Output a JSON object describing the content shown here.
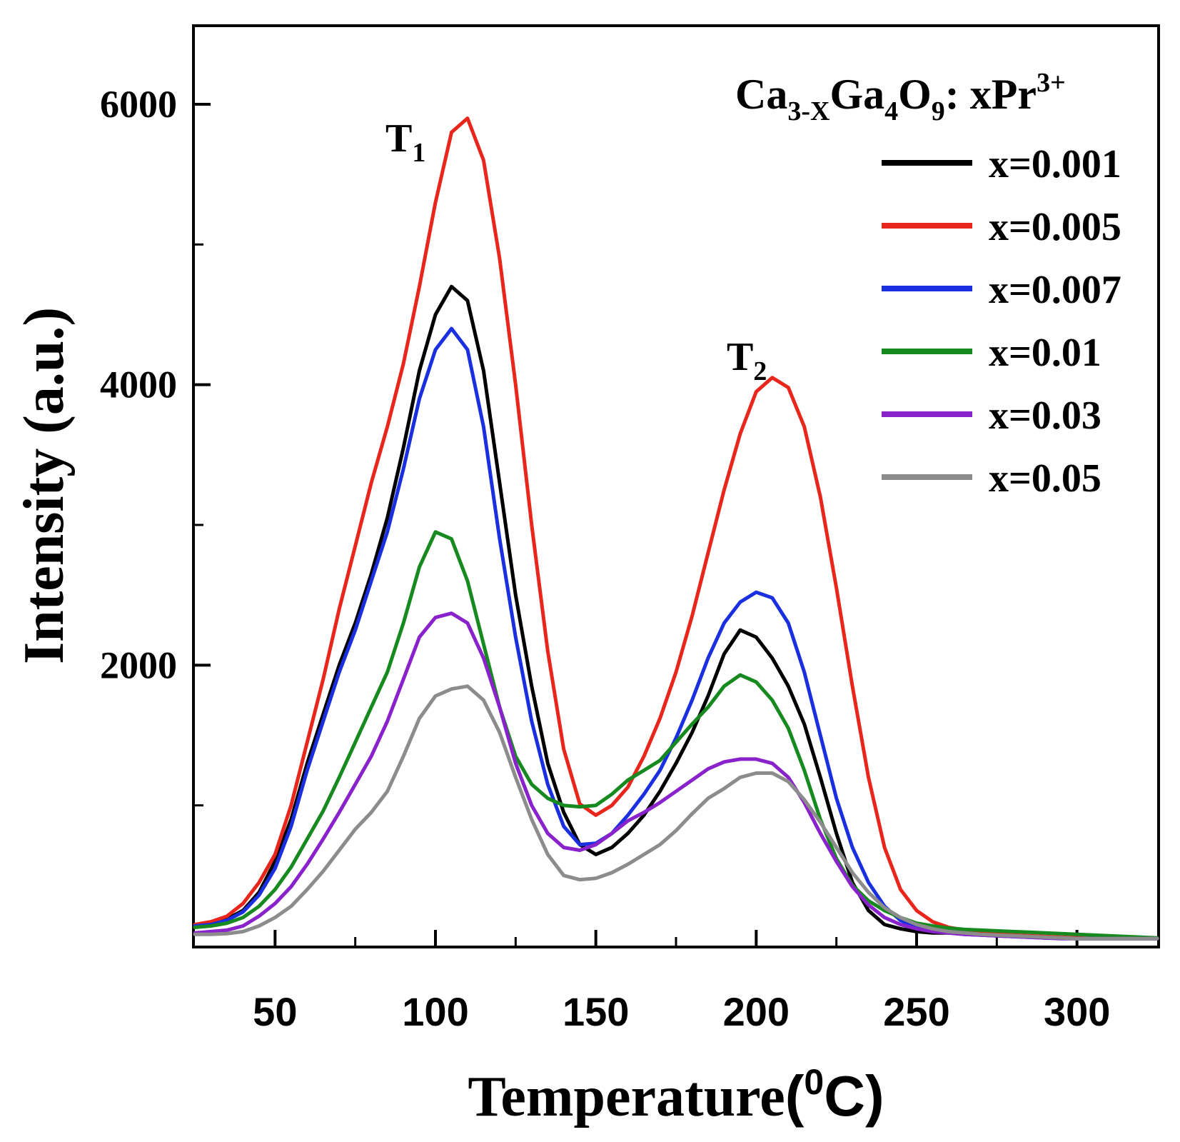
{
  "chart_data": {
    "type": "line",
    "title": "",
    "xlabel_main": "Temperature",
    "xlabel_unit_open": "(",
    "xlabel_unit_sup": "0",
    "xlabel_unit_close": "C)",
    "ylabel": "Intensity (a.u.)",
    "xlim": [
      25,
      325
    ],
    "ylim": [
      0,
      6550
    ],
    "xticks": [
      50,
      100,
      150,
      200,
      250,
      300
    ],
    "yticks": [
      2000,
      4000,
      6000
    ],
    "legend_title": {
      "a": "Ca",
      "b": "3-X",
      "c": "Ga",
      "d": "4",
      "e": "O",
      "f": "9",
      "g": ": xPr",
      "h": "3+"
    },
    "legend_position": "top-right",
    "annotations": [
      {
        "id": "T1",
        "main": "T",
        "sub": "1",
        "x": 101,
        "y": 6000
      },
      {
        "id": "T2",
        "main": "T",
        "sub": "2",
        "x": 210,
        "y": 3950
      }
    ],
    "x": [
      25,
      30,
      35,
      40,
      45,
      50,
      55,
      60,
      65,
      70,
      75,
      80,
      85,
      90,
      95,
      100,
      105,
      110,
      115,
      120,
      125,
      130,
      135,
      140,
      145,
      150,
      155,
      160,
      165,
      170,
      175,
      180,
      185,
      190,
      195,
      200,
      205,
      210,
      215,
      220,
      225,
      230,
      235,
      240,
      245,
      250,
      255,
      260,
      265,
      270,
      275,
      280,
      285,
      290,
      295,
      300,
      305,
      310,
      315,
      320,
      325
    ],
    "series": [
      {
        "name": "x=0.001",
        "color": "#000000",
        "values": [
          150,
          160,
          190,
          250,
          380,
          600,
          900,
          1300,
          1650,
          2000,
          2300,
          2650,
          3050,
          3550,
          4100,
          4500,
          4700,
          4600,
          4100,
          3300,
          2500,
          1850,
          1300,
          950,
          720,
          650,
          700,
          800,
          930,
          1100,
          1300,
          1520,
          1780,
          2080,
          2250,
          2200,
          2050,
          1850,
          1580,
          1200,
          800,
          450,
          250,
          150,
          120,
          100,
          90,
          90,
          85,
          80,
          75,
          70,
          65,
          60,
          55,
          50,
          50,
          50,
          50,
          50,
          50
        ]
      },
      {
        "name": "x=0.005",
        "color": "#e8261c",
        "values": [
          150,
          170,
          210,
          300,
          450,
          650,
          1000,
          1450,
          1900,
          2400,
          2850,
          3300,
          3700,
          4150,
          4700,
          5300,
          5800,
          5900,
          5600,
          4900,
          4000,
          3000,
          2100,
          1400,
          1010,
          930,
          1000,
          1130,
          1350,
          1620,
          1950,
          2350,
          2800,
          3250,
          3650,
          3950,
          4050,
          3980,
          3700,
          3200,
          2550,
          1850,
          1200,
          700,
          400,
          250,
          170,
          130,
          110,
          95,
          85,
          75,
          70,
          65,
          60,
          55,
          50,
          50,
          50,
          50,
          50
        ]
      },
      {
        "name": "x=0.007",
        "color": "#1a2fe0",
        "values": [
          140,
          150,
          180,
          240,
          360,
          550,
          850,
          1250,
          1600,
          1950,
          2250,
          2600,
          2950,
          3400,
          3900,
          4250,
          4400,
          4250,
          3700,
          2900,
          2200,
          1600,
          1150,
          850,
          720,
          730,
          800,
          930,
          1080,
          1250,
          1480,
          1750,
          2050,
          2300,
          2450,
          2520,
          2480,
          2300,
          1950,
          1500,
          1050,
          700,
          450,
          280,
          180,
          130,
          110,
          90,
          80,
          75,
          70,
          65,
          60,
          55,
          55,
          50,
          50,
          50,
          50,
          50,
          50
        ]
      },
      {
        "name": "x=0.01",
        "color": "#178a1f",
        "values": [
          130,
          140,
          160,
          200,
          280,
          400,
          560,
          760,
          960,
          1200,
          1450,
          1700,
          1950,
          2300,
          2700,
          2950,
          2900,
          2600,
          2150,
          1700,
          1350,
          1150,
          1050,
          1000,
          990,
          1000,
          1080,
          1180,
          1250,
          1320,
          1450,
          1580,
          1700,
          1850,
          1930,
          1880,
          1750,
          1550,
          1250,
          900,
          620,
          430,
          320,
          250,
          200,
          160,
          140,
          125,
          115,
          110,
          105,
          100,
          95,
          90,
          85,
          80,
          75,
          70,
          65,
          60,
          55
        ]
      },
      {
        "name": "x=0.03",
        "color": "#8a22cc",
        "values": [
          90,
          100,
          110,
          140,
          210,
          300,
          420,
          580,
          760,
          950,
          1150,
          1350,
          1600,
          1900,
          2200,
          2340,
          2370,
          2300,
          2050,
          1700,
          1300,
          1000,
          800,
          700,
          680,
          720,
          800,
          890,
          950,
          1020,
          1100,
          1180,
          1260,
          1310,
          1330,
          1330,
          1300,
          1200,
          1020,
          800,
          600,
          420,
          290,
          200,
          150,
          120,
          100,
          90,
          80,
          75,
          70,
          65,
          60,
          55,
          50,
          50,
          50,
          50,
          50,
          50,
          50
        ]
      },
      {
        "name": "x=0.05",
        "color": "#8c8c8c",
        "values": [
          80,
          80,
          85,
          100,
          140,
          200,
          280,
          400,
          530,
          680,
          830,
          950,
          1100,
          1350,
          1620,
          1780,
          1830,
          1850,
          1750,
          1520,
          1200,
          900,
          650,
          500,
          470,
          480,
          520,
          580,
          650,
          720,
          820,
          940,
          1050,
          1120,
          1200,
          1230,
          1230,
          1170,
          1040,
          880,
          700,
          520,
          380,
          270,
          200,
          150,
          120,
          100,
          90,
          80,
          75,
          70,
          65,
          60,
          55,
          50,
          50,
          50,
          50,
          50,
          50
        ]
      }
    ]
  }
}
